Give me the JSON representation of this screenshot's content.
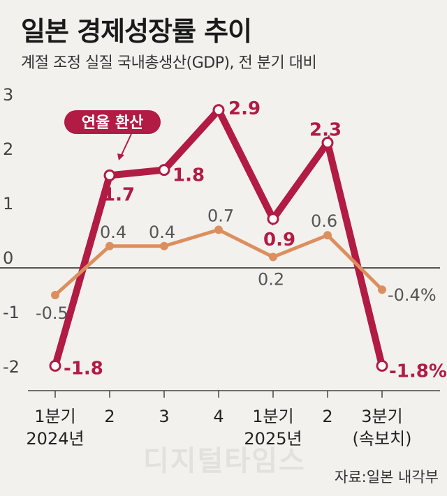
{
  "header": {
    "title": "일본 경제성장률 추이",
    "subtitle": "계절 조정 실질 국내총생산(GDP), 전 분기 대비"
  },
  "source": "자료:일본 내각부",
  "watermark": "디지털타임스",
  "chart_data": {
    "type": "line",
    "title": "일본 경제성장률 추이",
    "subtitle": "계절 조정 실질 국내총생산(GDP), 전 분기 대비",
    "categories": [
      "1분기\n2024년",
      "2",
      "3",
      "4",
      "1분기\n2025년",
      "2",
      "3분기\n(속보치)"
    ],
    "y_ticks": [
      "3",
      "2",
      "1",
      "0",
      "-1",
      "-2"
    ],
    "ylim": [
      -2.2,
      3.2
    ],
    "grid": false,
    "series": [
      {
        "name": "연율 환산",
        "color": "#b21b43",
        "values": [
          -1.8,
          1.7,
          1.8,
          2.9,
          0.9,
          2.3,
          -1.8
        ],
        "labels": [
          "-1.8",
          "1.7",
          "1.8",
          "2.9",
          "0.9",
          "2.3",
          "-1.8%"
        ]
      },
      {
        "name": "전 분기 대비",
        "color": "#dc8f5e",
        "values": [
          -0.5,
          0.4,
          0.4,
          0.7,
          0.2,
          0.6,
          -0.4
        ],
        "labels": [
          "-0.5",
          "0.4",
          "0.4",
          "0.7",
          "0.2",
          "0.6",
          "-0.4%"
        ]
      }
    ],
    "annotation": "연율 환산"
  }
}
